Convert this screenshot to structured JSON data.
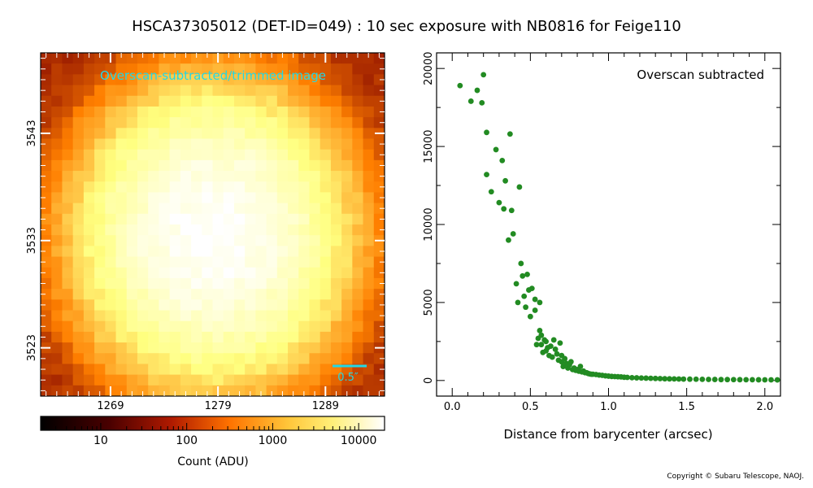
{
  "title": "HSCA37305012 (DET-ID=049) :  10 sec exposure with NB0816 for Feige110",
  "copyright": "Copyright © Subaru Telescope, NAOJ.",
  "image_panel": {
    "overlay_label": "Overscan-subtracted/trimmed image",
    "overlay_label_color": "#22d8e6",
    "scale_bar_label": "0.5″",
    "scale_bar_color": "#22d8e6",
    "x_ticks": [
      "1269",
      "1279",
      "1289"
    ],
    "y_ticks": [
      "3543",
      "3533",
      "3523"
    ],
    "x_range": [
      1262.5,
      1294.5
    ],
    "y_range": [
      3518.5,
      3550.5
    ],
    "star_center": [
      1278.5,
      3533.5
    ],
    "colormap": "afmhot"
  },
  "colorbar": {
    "label": "Count (ADU)",
    "tick_labels": [
      "10",
      "100",
      "1000",
      "10000"
    ],
    "scale": "log",
    "range": [
      2,
      20000
    ]
  },
  "chart_data": {
    "type": "scatter",
    "annotation": "Overscan subtracted",
    "xlabel": "Distance from barycenter (arcsec)",
    "ylabel": "",
    "xlim": [
      -0.1,
      2.1
    ],
    "ylim": [
      -1000,
      21000
    ],
    "x_ticks": [
      "0.0",
      "0.5",
      "1.0",
      "1.5",
      "2.0"
    ],
    "y_ticks": [
      "0",
      "5000",
      "10000",
      "15000",
      "20000"
    ],
    "marker_color": "#228B22",
    "x": [
      0.05,
      0.12,
      0.16,
      0.19,
      0.2,
      0.22,
      0.22,
      0.25,
      0.28,
      0.3,
      0.32,
      0.33,
      0.34,
      0.36,
      0.37,
      0.38,
      0.39,
      0.41,
      0.42,
      0.43,
      0.44,
      0.45,
      0.46,
      0.47,
      0.48,
      0.49,
      0.5,
      0.51,
      0.53,
      0.53,
      0.54,
      0.55,
      0.56,
      0.56,
      0.57,
      0.57,
      0.58,
      0.59,
      0.6,
      0.6,
      0.61,
      0.62,
      0.63,
      0.64,
      0.65,
      0.66,
      0.67,
      0.68,
      0.69,
      0.7,
      0.7,
      0.71,
      0.72,
      0.73,
      0.74,
      0.75,
      0.76,
      0.77,
      0.78,
      0.79,
      0.8,
      0.81,
      0.82,
      0.83,
      0.84,
      0.85,
      0.86,
      0.87,
      0.88,
      0.89,
      0.9,
      0.92,
      0.94,
      0.96,
      0.98,
      1.0,
      1.02,
      1.04,
      1.06,
      1.08,
      1.1,
      1.12,
      1.15,
      1.18,
      1.21,
      1.24,
      1.27,
      1.3,
      1.33,
      1.36,
      1.39,
      1.42,
      1.45,
      1.48,
      1.52,
      1.56,
      1.6,
      1.64,
      1.68,
      1.72,
      1.76,
      1.8,
      1.84,
      1.88,
      1.92,
      1.96,
      2.0,
      2.04,
      2.08
    ],
    "y": [
      18900,
      17900,
      18600,
      17800,
      19600,
      13200,
      15900,
      12100,
      14800,
      11400,
      14100,
      11000,
      12800,
      9000,
      15800,
      10900,
      9400,
      6200,
      5000,
      12400,
      7500,
      6700,
      5400,
      4700,
      6800,
      5800,
      4100,
      5900,
      5200,
      4500,
      2300,
      2700,
      3200,
      5000,
      2900,
      2300,
      1800,
      2600,
      1900,
      2500,
      2100,
      1600,
      2200,
      1500,
      2600,
      2000,
      1700,
      1300,
      2400,
      1200,
      1600,
      900,
      1400,
      1100,
      800,
      1000,
      1200,
      700,
      800,
      650,
      700,
      600,
      900,
      550,
      600,
      500,
      500,
      450,
      420,
      400,
      400,
      380,
      350,
      330,
      300,
      280,
      260,
      250,
      240,
      230,
      210,
      200,
      180,
      170,
      160,
      150,
      140,
      130,
      120,
      110,
      105,
      100,
      95,
      90,
      85,
      80,
      75,
      70,
      65,
      60,
      58,
      55,
      52,
      50,
      48,
      46,
      44,
      42,
      40
    ]
  }
}
